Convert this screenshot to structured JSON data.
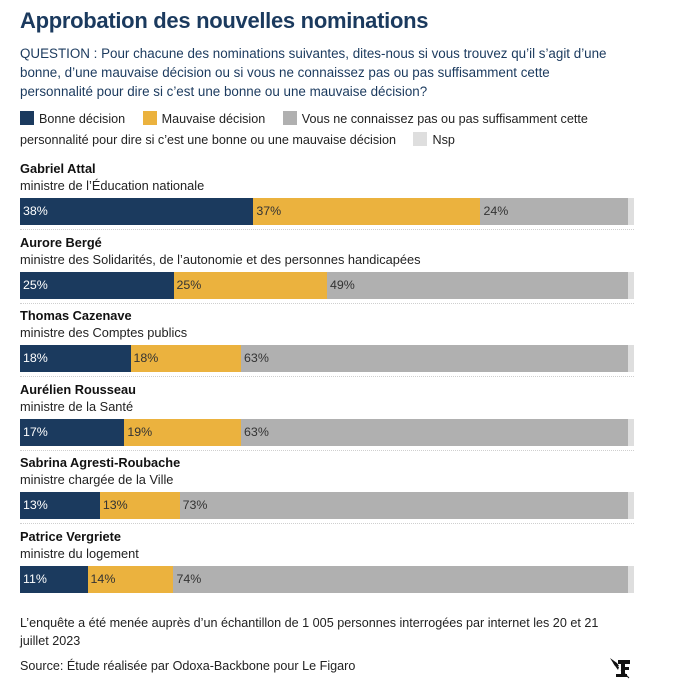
{
  "header": {
    "title": "Approbation des nouvelles nominations",
    "question": "QUESTION : Pour chacune des nominations suivantes, dites-nous si vous trouvez qu’il s’agit d’une bonne, d’une mauvaise décision ou si vous ne connaissez pas ou pas suffisamment cette personnalité pour dire si c’est une bonne ou une mauvaise décision?"
  },
  "colors": {
    "bonne": "#1b3a5e",
    "mauvaise": "#ebb23e",
    "ne_connait_pas": "#b0b0b0",
    "nsp": "#dedede"
  },
  "chart_data": {
    "type": "bar",
    "orientation": "horizontal-stacked-100",
    "title": "Approbation des nouvelles nominations",
    "legend": [
      "Bonne décision",
      "Mauvaise décision",
      "Vous ne connaissez pas ou pas suffisamment cette personnalité pour dire si c’est une bonne ou une mauvaise décision",
      "Nsp"
    ],
    "legend_position": "top",
    "categories": [
      {
        "name": "Gabriel Attal",
        "role": "ministre de l’Éducation nationale"
      },
      {
        "name": "Aurore Bergé",
        "role": "ministre des Solidarités, de l’autonomie et des personnes handicapées"
      },
      {
        "name": "Thomas Cazenave",
        "role": "ministre des Comptes publics"
      },
      {
        "name": "Aurélien Rousseau",
        "role": "ministre de la Santé"
      },
      {
        "name": "Sabrina Agresti-Roubache",
        "role": "ministre chargée de la Ville"
      },
      {
        "name": "Patrice Vergriete",
        "role": "ministre du logement"
      }
    ],
    "series": [
      {
        "name": "Bonne décision",
        "values": [
          38,
          25,
          18,
          17,
          13,
          11
        ]
      },
      {
        "name": "Mauvaise décision",
        "values": [
          37,
          25,
          18,
          19,
          13,
          14
        ]
      },
      {
        "name": "Vous ne connaissez pas ou pas suffisamment cette personnalité",
        "values": [
          24,
          49,
          63,
          63,
          73,
          74
        ]
      },
      {
        "name": "Nsp",
        "values": [
          1,
          1,
          1,
          1,
          1,
          1
        ]
      }
    ],
    "labels_shown_for_series": [
      0,
      1,
      2
    ],
    "xlim": [
      0,
      100
    ],
    "unit": "%"
  },
  "footer": {
    "note": "L’enquête a été menée auprès d’un échantillon de 1 005 personnes interrogées par internet les 20 et 21 juillet 2023",
    "source": "Source: Étude réalisée par Odoxa-Backbone pour Le Figaro",
    "logo": "le-figaro-logo"
  }
}
